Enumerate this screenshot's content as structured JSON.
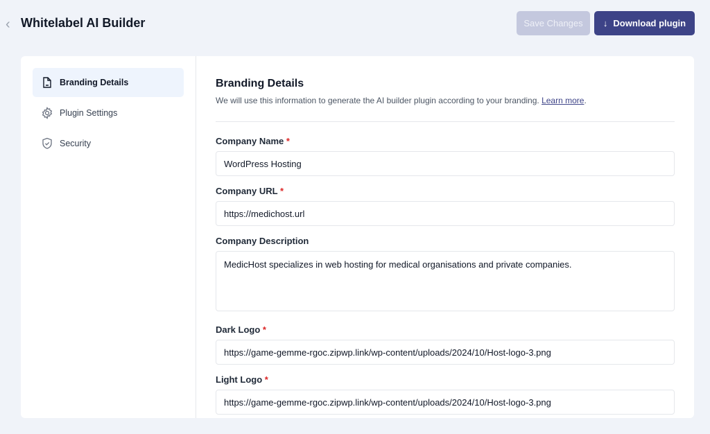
{
  "header": {
    "title": "Whitelabel AI Builder",
    "save_label": "Save Changes",
    "download_label": "Download plugin"
  },
  "sidebar": {
    "items": [
      {
        "label": "Branding Details",
        "icon": "document-icon",
        "active": true
      },
      {
        "label": "Plugin Settings",
        "icon": "gear-icon"
      },
      {
        "label": "Security",
        "icon": "shield-icon"
      }
    ]
  },
  "main": {
    "title": "Branding Details",
    "description": "We will use this information to generate the AI builder plugin according to your branding.",
    "learn_more": "Learn more",
    "fields": [
      {
        "label": "Company Name",
        "required": "*",
        "value": "WordPress Hosting"
      },
      {
        "label": "Company URL",
        "required": "*",
        "value": "https://medichost.url"
      },
      {
        "label": "Company Description",
        "value": "MedicHost specializes in web hosting for medical organisations and private companies."
      },
      {
        "label": "Dark Logo",
        "required": "*",
        "value": "https://game-gemme-rgoc.zipwp.link/wp-content/uploads/2024/10/Host-logo-3.png"
      },
      {
        "label": "Light Logo",
        "required": "*",
        "value": "https://game-gemme-rgoc.zipwp.link/wp-content/uploads/2024/10/Host-logo-3.png"
      }
    ]
  }
}
